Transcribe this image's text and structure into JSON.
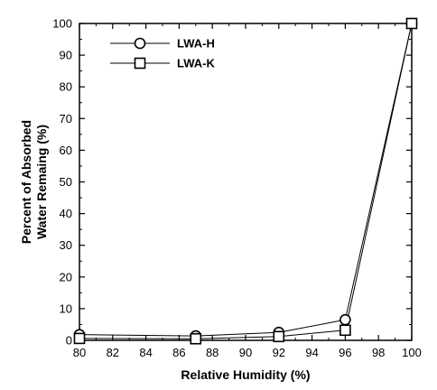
{
  "chart_data": {
    "type": "line",
    "xlabel": "Relative Humidity (%)",
    "ylabel_lines": [
      "Percent of Absorbed",
      "Water Remaing (%)"
    ],
    "xlim": [
      80,
      100
    ],
    "ylim": [
      0,
      100
    ],
    "x_ticks": [
      80,
      82,
      84,
      86,
      88,
      90,
      92,
      94,
      96,
      98,
      100
    ],
    "y_ticks": [
      0,
      10,
      20,
      30,
      40,
      50,
      60,
      70,
      80,
      90,
      100
    ],
    "grid": false,
    "legend_position": "top-left",
    "series": [
      {
        "name": "LWA-H",
        "marker": "circle",
        "x": [
          80,
          87,
          92,
          96,
          100
        ],
        "y": [
          1.8,
          1.4,
          2.5,
          6.5,
          100
        ]
      },
      {
        "name": "LWA-K",
        "marker": "square",
        "x": [
          80,
          87,
          92,
          96,
          100
        ],
        "y": [
          0.6,
          0.5,
          1.2,
          3.2,
          100
        ]
      }
    ]
  }
}
